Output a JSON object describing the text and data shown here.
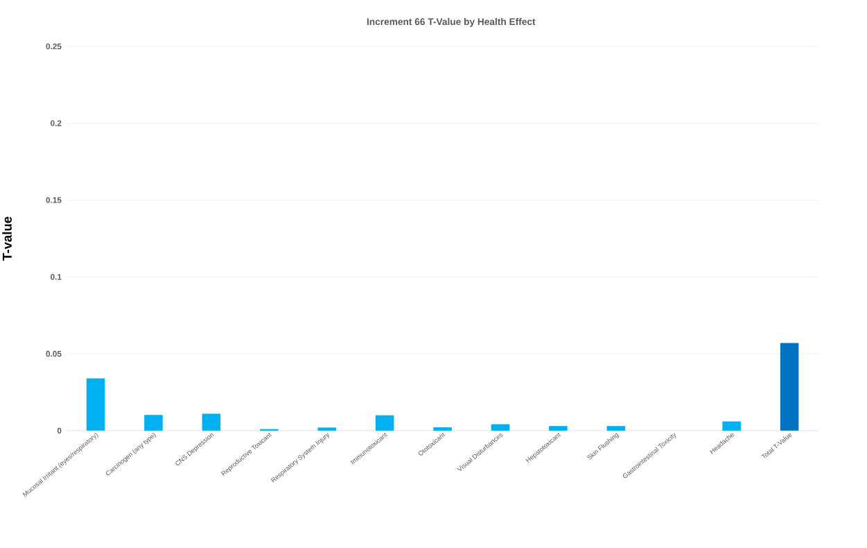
{
  "chart_data": {
    "type": "bar",
    "title": "Increment 66 T-Value by Health Effect",
    "ylabel": "T-value",
    "categories": [
      "Mucosal Irritant (eyes/respiratory)",
      "Carcinogen (any type)",
      "CNS Depression",
      "Reproductive Toxicant",
      "Respiratory System Injury",
      "Immunotoxicant",
      "Ototoxicant",
      "Visual Disturbances",
      "Hepatotoxicant",
      "Skin Flushing",
      "Gastrointestinal Toxicity",
      "Headache",
      "Total T-Value"
    ],
    "values": [
      0.034,
      0.0102,
      0.011,
      0.001,
      0.002,
      0.01,
      0.0022,
      0.0042,
      0.003,
      0.003,
      0,
      0.006,
      0.057
    ],
    "colors": [
      "#00b0f0",
      "#00b0f0",
      "#00b0f0",
      "#00b0f0",
      "#00b0f0",
      "#00b0f0",
      "#00b0f0",
      "#00b0f0",
      "#00b0f0",
      "#00b0f0",
      "#00b0f0",
      "#00b0f0",
      "#0070c0"
    ],
    "ylim": [
      0,
      0.25
    ],
    "yticks": [
      0,
      0.05,
      0.1,
      0.15,
      0.2,
      0.25
    ],
    "grid": "y"
  }
}
